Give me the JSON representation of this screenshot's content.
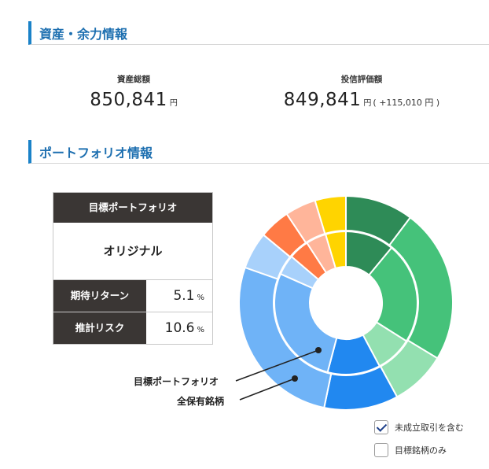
{
  "sections": {
    "assets_title": "資産・余力情報",
    "portfolio_title": "ポートフォリオ情報"
  },
  "assets": {
    "total_label": "資産総額",
    "total_value": "850,841",
    "total_unit": "円",
    "fund_label": "投信評価額",
    "fund_value": "849,841",
    "fund_unit": "円",
    "fund_diff": "( +115,010 円 )"
  },
  "portfolio": {
    "header": "目標ポートフォリオ",
    "name": "オリジナル",
    "expected_return_label": "期待リターン",
    "expected_return_value": "5.1",
    "estimated_risk_label": "推計リスク",
    "estimated_risk_value": "10.6",
    "percent_unit": "%"
  },
  "chart_data": {
    "type": "pie",
    "subtype": "double-donut",
    "rings": [
      {
        "name": "全保有銘柄",
        "position": "outer",
        "values": [
          11,
          25,
          9,
          12,
          29,
          6,
          5,
          5,
          5
        ],
        "colors": [
          "#2e8b57",
          "#45c27a",
          "#93e0b0",
          "#2188f0",
          "#6fb3f7",
          "#a8d1fb",
          "#ff7a45",
          "#ffb59a",
          "#ffd400"
        ]
      },
      {
        "name": "目標ポートフォリオ",
        "position": "inner",
        "values": [
          12,
          25,
          9,
          13,
          30,
          5,
          5,
          5,
          5
        ],
        "colors": [
          "#2e8b57",
          "#45c27a",
          "#93e0b0",
          "#2188f0",
          "#6fb3f7",
          "#a8d1fb",
          "#ff7a45",
          "#ffb59a",
          "#ffd400"
        ]
      }
    ]
  },
  "legend": {
    "inner_label": "目標ポートフォリオ",
    "outer_label": "全保有銘柄"
  },
  "filters": {
    "include_pending_label": "未成立取引を含む",
    "include_pending_checked": true,
    "target_only_label": "目標銘柄のみ",
    "target_only_checked": false
  }
}
